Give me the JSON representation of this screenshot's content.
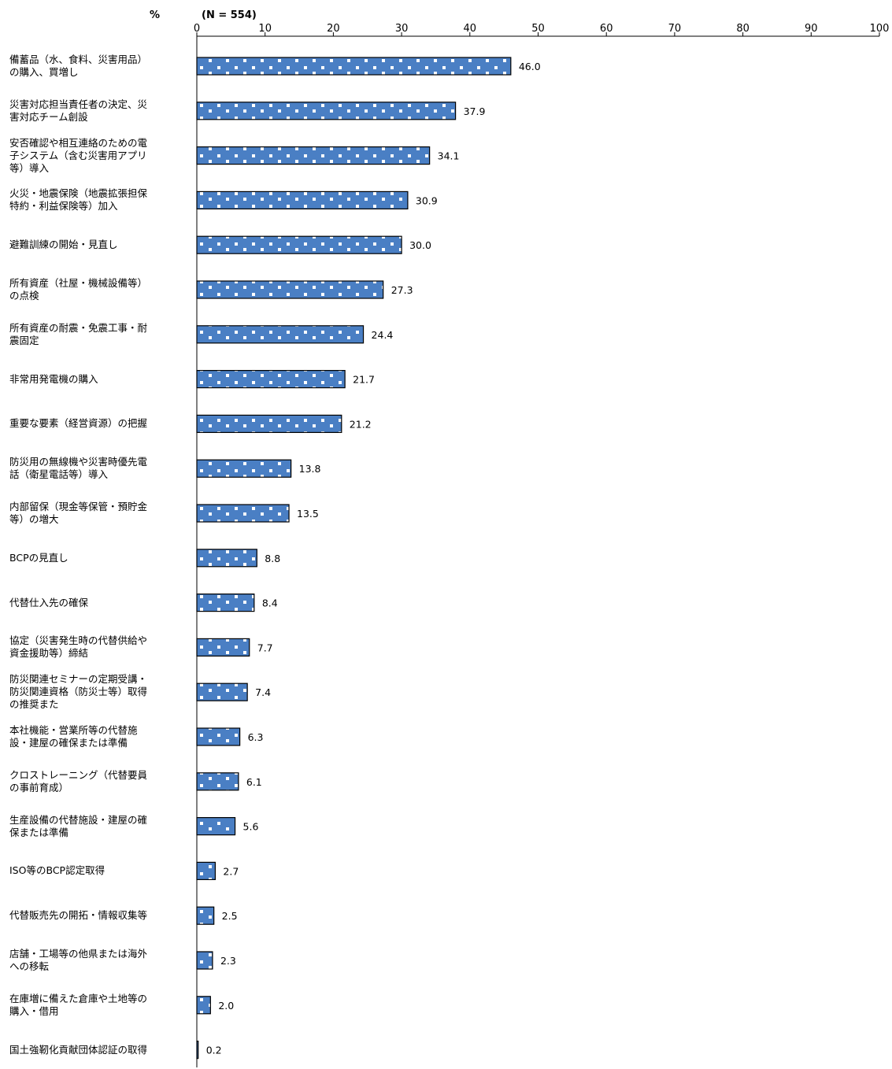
{
  "chart_data": {
    "type": "bar",
    "orientation": "horizontal",
    "unit_label": "%",
    "sample_label": "(N = 554)",
    "xlim": [
      0,
      100
    ],
    "x_ticks": [
      0,
      10,
      20,
      30,
      40,
      50,
      60,
      70,
      80,
      90,
      100
    ],
    "x_tick_labels": [
      "0",
      "10",
      "20",
      "30",
      "40",
      "50",
      "60",
      "70",
      "80",
      "90",
      "100"
    ],
    "grid": false,
    "bar_color": "#4a7fc4",
    "bar_pattern": "white-dots",
    "categories": [
      "備蓄品（水、食料、災害用品）の購入、買増し",
      "災害対応担当責任者の決定、災害対応チーム創設",
      "安否確認や相互連絡のための電子システム（含む災害用アプリ等）導入",
      "火災・地震保険（地震拡張担保特約・利益保険等）加入",
      "避難訓練の開始・見直し",
      "所有資産（社屋・機械設備等）の点検",
      "所有資産の耐震・免震工事・耐震固定",
      "非常用発電機の購入",
      "重要な要素（経営資源）の把握",
      "防災用の無線機や災害時優先電話（衛星電話等）導入",
      "内部留保（現金等保管・預貯金等）の増大",
      "BCPの見直し",
      "代替仕入先の確保",
      "協定（災害発生時の代替供給や資金援助等）締結",
      "防災関連セミナーの定期受講・防災関連資格（防災士等）取得の推奨また",
      "本社機能・営業所等の代替施設・建屋の確保または準備",
      "クロストレーニング（代替要員の事前育成）",
      "生産設備の代替施設・建屋の確保または準備",
      "ISO等のBCP認定取得",
      "代替販売先の開拓・情報収集等",
      "店舗・工場等の他県または海外への移転",
      "在庫増に備えた倉庫や土地等の購入・借用",
      "国土強靭化貢献団体認証の取得"
    ],
    "values": [
      46.0,
      37.9,
      34.1,
      30.9,
      30.0,
      27.3,
      24.4,
      21.7,
      21.2,
      13.8,
      13.5,
      8.8,
      8.4,
      7.7,
      7.4,
      6.3,
      6.1,
      5.6,
      2.7,
      2.5,
      2.3,
      2.0,
      0.2
    ],
    "value_labels": [
      "46.0",
      "37.9",
      "34.1",
      "30.9",
      "30.0",
      "27.3",
      "24.4",
      "21.7",
      "21.2",
      "13.8",
      "13.5",
      "8.8",
      "8.4",
      "7.7",
      "7.4",
      "6.3",
      "6.1",
      "5.6",
      "2.7",
      "2.5",
      "2.3",
      "2.0",
      "0.2"
    ]
  }
}
